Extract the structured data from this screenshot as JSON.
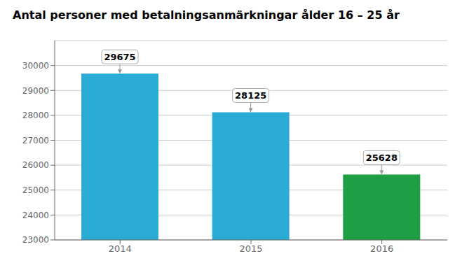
{
  "chart_data": {
    "type": "bar",
    "title": "Antal personer med betalningsanmärkningar ålder 16 – 25 år",
    "categories": [
      "2014",
      "2015",
      "2016"
    ],
    "values": [
      29675,
      28125,
      25628
    ],
    "colors": [
      "#29ABD4",
      "#29ABD4",
      "#1E9E45"
    ],
    "ylim": [
      23000,
      31000
    ],
    "yticks": [
      23000,
      24000,
      25000,
      26000,
      27000,
      28000,
      29000,
      30000
    ],
    "grid": true,
    "data_labels": true
  }
}
